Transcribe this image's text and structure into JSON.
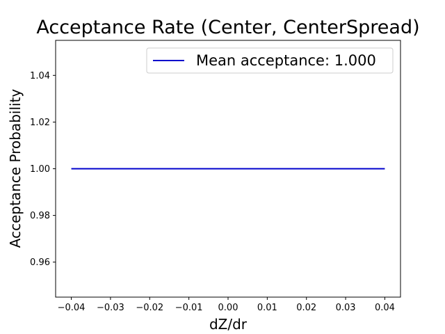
{
  "chart_data": {
    "type": "line",
    "title": "Acceptance Rate (Center, CenterSpread)",
    "xlabel": "dZ/dr",
    "ylabel": "Acceptance Probability",
    "xlim": [
      -0.044,
      0.044
    ],
    "ylim": [
      0.945,
      1.055
    ],
    "xticks": [
      -0.04,
      -0.03,
      -0.02,
      -0.01,
      0.0,
      0.01,
      0.02,
      0.03,
      0.04
    ],
    "xtick_labels": [
      "−0.04",
      "−0.03",
      "−0.02",
      "−0.01",
      "0.00",
      "0.01",
      "0.02",
      "0.03",
      "0.04"
    ],
    "yticks": [
      0.96,
      0.98,
      1.0,
      1.02,
      1.04
    ],
    "ytick_labels": [
      "0.96",
      "0.98",
      "1.00",
      "1.02",
      "1.04"
    ],
    "grid": false,
    "legend_position": "top-right",
    "series": [
      {
        "name": "Mean acceptance: 1.000",
        "color": "#0000cc",
        "x": [
          -0.04,
          0.04
        ],
        "y": [
          1.0,
          1.0
        ]
      }
    ]
  }
}
